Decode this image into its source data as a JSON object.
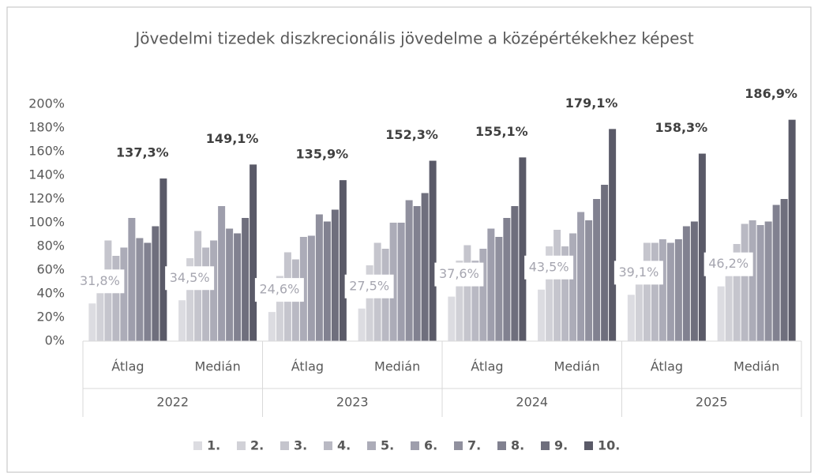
{
  "chart_data": {
    "type": "bar",
    "title": "Jövedelmi tizedek diszkrecionális jövedelme a középértékekhez képest",
    "categories": [
      "Átlag",
      "Medián",
      "Átlag",
      "Medián",
      "Átlag",
      "Medián",
      "Átlag",
      "Medián"
    ],
    "category_groups": [
      "2022",
      "2023",
      "2024",
      "2025"
    ],
    "ylim": [
      0,
      200
    ],
    "yticks": [
      {
        "value": 0,
        "label": "0%"
      },
      {
        "value": 20,
        "label": "20%"
      },
      {
        "value": 40,
        "label": "40%"
      },
      {
        "value": 60,
        "label": "60%"
      },
      {
        "value": 80,
        "label": "80%"
      },
      {
        "value": 100,
        "label": "100%"
      },
      {
        "value": 120,
        "label": "120%"
      },
      {
        "value": 140,
        "label": "140%"
      },
      {
        "value": 160,
        "label": "160%"
      },
      {
        "value": 180,
        "label": "180%"
      },
      {
        "value": 200,
        "label": "200%"
      }
    ],
    "grid": false,
    "legend": "bottom",
    "series": [
      {
        "name": "1.",
        "color": "#dcdce1",
        "values": [
          31.8,
          34.5,
          24.6,
          27.5,
          37.6,
          43.5,
          39.1,
          46.2
        ],
        "value_labels": [
          "31,8%",
          "34,5%",
          "24,6%",
          "27,5%",
          "37,6%",
          "43,5%",
          "39,1%",
          "46,2%"
        ]
      },
      {
        "name": "2.",
        "color": "#d1d1d7",
        "values": [
          45,
          70,
          55,
          64,
          68,
          80,
          55,
          70
        ]
      },
      {
        "name": "3.",
        "color": "#c5c5cd",
        "values": [
          85,
          93,
          75,
          83,
          81,
          94,
          83,
          82
        ]
      },
      {
        "name": "4.",
        "color": "#b9b9c3",
        "values": [
          72,
          79,
          69,
          78,
          68,
          80,
          83,
          99
        ]
      },
      {
        "name": "5.",
        "color": "#acacb8",
        "values": [
          79,
          85,
          88,
          100,
          78,
          91,
          86,
          102
        ]
      },
      {
        "name": "6.",
        "color": "#9e9eac",
        "values": [
          104,
          114,
          89,
          100,
          95,
          109,
          83,
          98
        ]
      },
      {
        "name": "7.",
        "color": "#90909e",
        "values": [
          87,
          95,
          107,
          119,
          88,
          102,
          86,
          101
        ]
      },
      {
        "name": "8.",
        "color": "#818190",
        "values": [
          83,
          91,
          101,
          114,
          104,
          120,
          97,
          115
        ]
      },
      {
        "name": "9.",
        "color": "#6f6f7d",
        "values": [
          97,
          104,
          111,
          125,
          114,
          132,
          101,
          120
        ]
      },
      {
        "name": "10.",
        "color": "#5a5a68",
        "values": [
          137.3,
          149.1,
          135.9,
          152.3,
          155.1,
          179.1,
          158.3,
          186.9
        ],
        "value_labels": [
          "137,3%",
          "149,1%",
          "135,9%",
          "152,3%",
          "155,1%",
          "179,1%",
          "158,3%",
          "186,9%"
        ]
      }
    ]
  }
}
